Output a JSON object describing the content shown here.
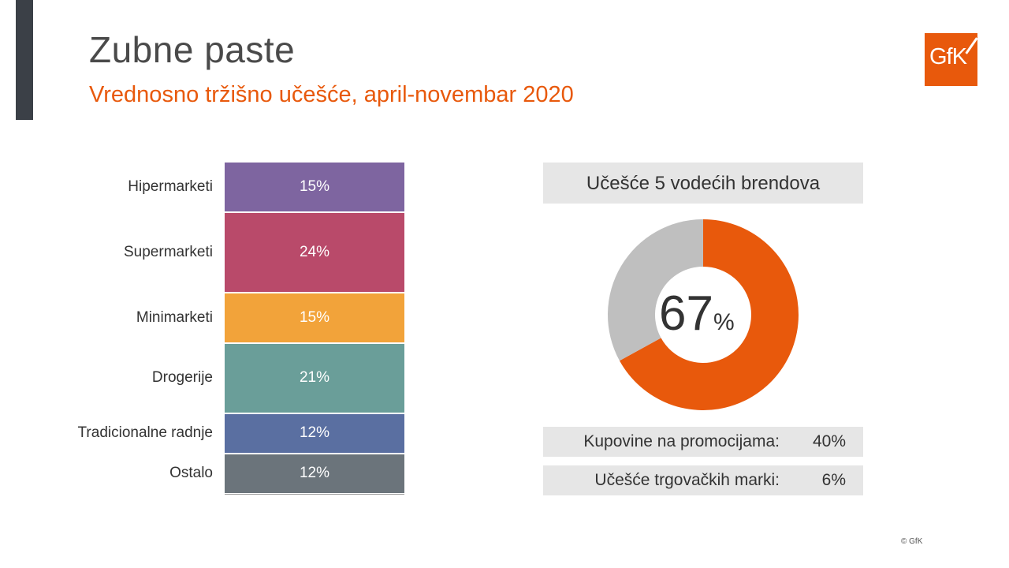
{
  "header": {
    "title": "Zubne paste",
    "subtitle": "Vrednosno tržišno učešće, april-novembar 2020",
    "logo_text": "GfK",
    "accent_color": "#e8590c"
  },
  "chart_data": [
    {
      "type": "bar",
      "subtype": "stacked-100",
      "categories": [
        "Hipermarketi",
        "Supermarketi",
        "Minimarketi",
        "Drogerije",
        "Tradicionalne radnje",
        "Ostalo"
      ],
      "values": [
        15,
        24,
        15,
        21,
        12,
        12
      ],
      "value_labels": [
        "15%",
        "24%",
        "15%",
        "21%",
        "12%",
        "12%"
      ],
      "unit": "%",
      "colors": [
        "#7e65a0",
        "#b94a6a",
        "#f2a33a",
        "#6a9e99",
        "#5a6fa1",
        "#6b747b"
      ],
      "title": "",
      "xlabel": "",
      "ylabel": ""
    },
    {
      "type": "pie",
      "subtype": "donut",
      "title": "Učešće 5 vodećih brendova",
      "values": [
        67,
        33
      ],
      "center_value": "67",
      "center_unit": "%",
      "colors": [
        "#e8590c",
        "#bfbfbf"
      ]
    }
  ],
  "stats": [
    {
      "label": "Kupovine na promocijama:",
      "value": "40%"
    },
    {
      "label": "Učešće trgovačkih marki:",
      "value": "6%"
    }
  ],
  "footer": {
    "copyright": "© GfK"
  }
}
